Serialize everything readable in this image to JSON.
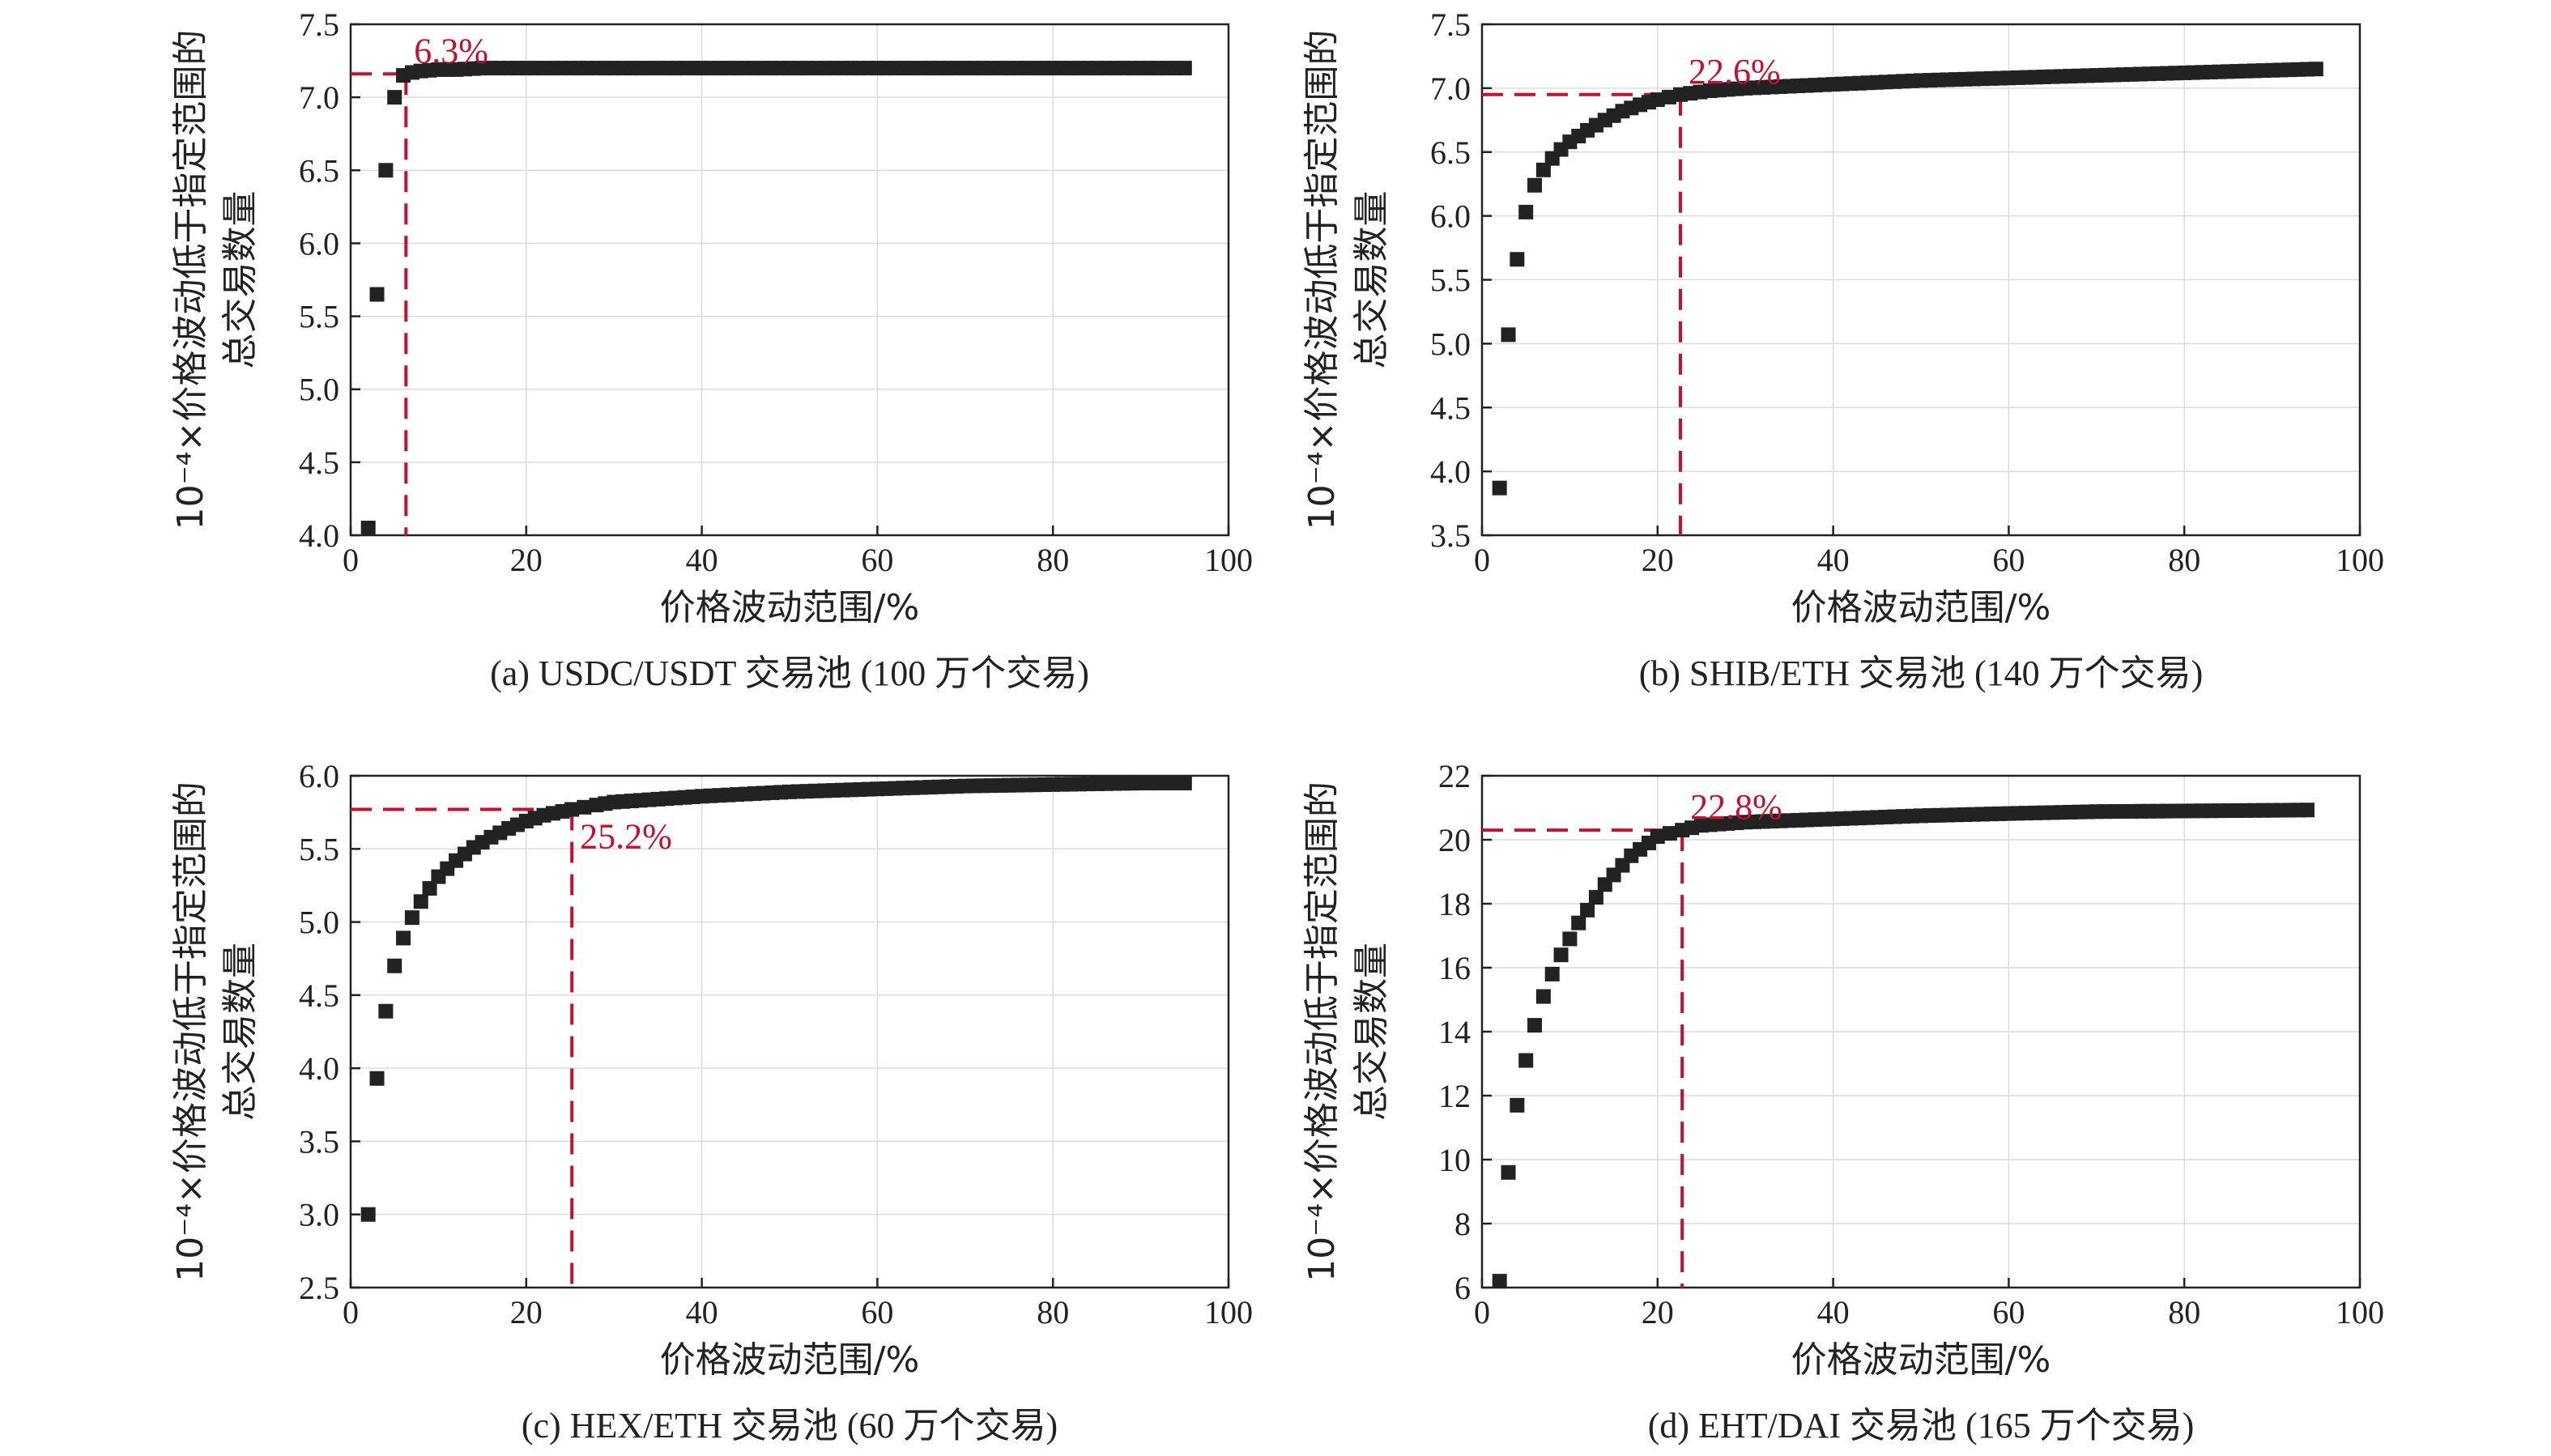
{
  "figure": {
    "axis_label_x": "价格波动范围/%",
    "axis_label_y_line1": "10⁻⁴×价格波动低于指定范围的",
    "axis_label_y_line2": "总交易数量"
  },
  "chart_data": [
    {
      "type": "scatter",
      "caption": "(a)  USDC/USDT 交易池 (100 万个交易)",
      "xlim": [
        0,
        100
      ],
      "ylim": [
        4.0,
        7.5
      ],
      "xticks": [
        "0",
        "20",
        "40",
        "60",
        "80",
        "100"
      ],
      "yticks": [
        "4.0",
        "4.5",
        "5.0",
        "5.5",
        "6.0",
        "6.5",
        "7.0",
        "7.5"
      ],
      "grid": true,
      "annotation": {
        "label": "6.3%",
        "x": 6.3,
        "y": 7.16
      },
      "series": [
        {
          "x": [
            2,
            3,
            4,
            5,
            6,
            7,
            8,
            10,
            12,
            15,
            20,
            30,
            40,
            50,
            60,
            70,
            80,
            90,
            95
          ],
          "y": [
            4.05,
            5.65,
            6.5,
            7.0,
            7.15,
            7.17,
            7.18,
            7.19,
            7.19,
            7.2,
            7.2,
            7.2,
            7.2,
            7.2,
            7.2,
            7.2,
            7.2,
            7.2,
            7.2
          ]
        }
      ]
    },
    {
      "type": "scatter",
      "caption": "(b)  SHIB/ETH 交易池 (140 万个交易)",
      "xlim": [
        0,
        100
      ],
      "ylim": [
        3.5,
        7.5
      ],
      "xticks": [
        "0",
        "20",
        "40",
        "60",
        "80",
        "100"
      ],
      "yticks": [
        "3.5",
        "4.0",
        "4.5",
        "5.0",
        "5.5",
        "6.0",
        "6.5",
        "7.0",
        "7.5"
      ],
      "grid": true,
      "annotation": {
        "label": "22.6%",
        "x": 22.6,
        "y": 6.95
      },
      "series": [
        {
          "x": [
            2,
            3,
            4,
            5,
            6,
            7,
            8,
            9,
            10,
            12,
            14,
            16,
            18,
            20,
            22.6,
            26,
            30,
            40,
            50,
            60,
            70,
            80,
            90,
            95
          ],
          "y": [
            3.87,
            5.07,
            5.66,
            6.03,
            6.24,
            6.36,
            6.45,
            6.52,
            6.58,
            6.67,
            6.75,
            6.82,
            6.87,
            6.91,
            6.95,
            6.98,
            7.0,
            7.03,
            7.06,
            7.08,
            7.1,
            7.12,
            7.14,
            7.15
          ]
        }
      ]
    },
    {
      "type": "scatter",
      "caption": "(c)  HEX/ETH 交易池 (60 万个交易)",
      "xlim": [
        0,
        100
      ],
      "ylim": [
        2.5,
        6.0
      ],
      "xticks": [
        "0",
        "20",
        "40",
        "60",
        "80",
        "100"
      ],
      "yticks": [
        "2.5",
        "3.0",
        "3.5",
        "4.0",
        "4.5",
        "5.0",
        "5.5",
        "6.0"
      ],
      "grid": true,
      "annotation": {
        "label": "25.2%",
        "x": 25.2,
        "y": 5.77
      },
      "series": [
        {
          "x": [
            2,
            3,
            4,
            5,
            6,
            7,
            8,
            9,
            10,
            12,
            14,
            16,
            18,
            20,
            22,
            25.2,
            28,
            30,
            35,
            40,
            50,
            60,
            70,
            80,
            90,
            95
          ],
          "y": [
            3.0,
            3.93,
            4.39,
            4.7,
            4.89,
            5.03,
            5.14,
            5.23,
            5.31,
            5.42,
            5.51,
            5.58,
            5.64,
            5.69,
            5.73,
            5.77,
            5.8,
            5.82,
            5.84,
            5.86,
            5.89,
            5.91,
            5.93,
            5.94,
            5.95,
            5.95
          ]
        }
      ]
    },
    {
      "type": "scatter",
      "caption": "(d)  EHT/DAI 交易池 (165 万个交易)",
      "xlim": [
        0,
        100
      ],
      "ylim": [
        6,
        22
      ],
      "xticks": [
        "0",
        "20",
        "40",
        "60",
        "80",
        "100"
      ],
      "yticks": [
        "6",
        "8",
        "10",
        "12",
        "14",
        "16",
        "18",
        "20",
        "22"
      ],
      "grid": true,
      "annotation": {
        "label": "22.8%",
        "x": 22.8,
        "y": 20.3
      },
      "series": [
        {
          "x": [
            2,
            3,
            4,
            5,
            6,
            7,
            8,
            9,
            10,
            11,
            12,
            13,
            14,
            15,
            16,
            17,
            18,
            19,
            20,
            22.8,
            25,
            30,
            40,
            50,
            60,
            70,
            80,
            90,
            94
          ],
          "y": [
            6.2,
            9.6,
            11.7,
            13.1,
            14.2,
            15.1,
            15.8,
            16.4,
            16.9,
            17.4,
            17.8,
            18.2,
            18.6,
            18.9,
            19.2,
            19.5,
            19.7,
            19.9,
            20.1,
            20.3,
            20.45,
            20.55,
            20.65,
            20.75,
            20.82,
            20.88,
            20.9,
            20.92,
            20.93
          ]
        }
      ]
    }
  ]
}
